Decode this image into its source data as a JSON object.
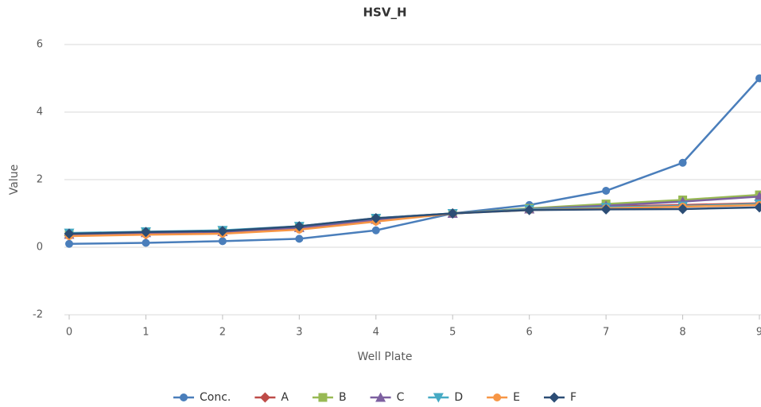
{
  "chart_data": {
    "type": "line",
    "title": "HSV_H",
    "x_label": "Well Plate",
    "y_label": "Value",
    "x": [
      0,
      1,
      2,
      3,
      4,
      5,
      6,
      7,
      8,
      9
    ],
    "xlim": [
      0,
      9
    ],
    "xticks": [
      0,
      1,
      2,
      3,
      4,
      5,
      6,
      7,
      8,
      9
    ],
    "ylim": [
      -2,
      6
    ],
    "yticks": [
      -2,
      0,
      2,
      4,
      6
    ],
    "grid": true,
    "legend": "bottom",
    "series": [
      {
        "name": "Conc.",
        "color": "#4a7ebb",
        "marker": "circle",
        "values": [
          0.1,
          0.13,
          0.18,
          0.25,
          0.5,
          1.0,
          1.25,
          1.67,
          2.5,
          5.0
        ]
      },
      {
        "name": "A",
        "color": "#be4b48",
        "marker": "diamond",
        "values": [
          0.35,
          0.38,
          0.42,
          0.55,
          0.78,
          1.0,
          1.12,
          1.2,
          1.25,
          1.3
        ]
      },
      {
        "name": "B",
        "color": "#98b954",
        "marker": "square",
        "values": [
          0.4,
          0.45,
          0.48,
          0.6,
          0.85,
          1.0,
          1.15,
          1.28,
          1.4,
          1.55
        ]
      },
      {
        "name": "C",
        "color": "#7d60a0",
        "marker": "triangle-up",
        "values": [
          0.38,
          0.43,
          0.46,
          0.58,
          0.82,
          1.0,
          1.13,
          1.23,
          1.35,
          1.5
        ]
      },
      {
        "name": "D",
        "color": "#46aac4",
        "marker": "triangle-down",
        "values": [
          0.42,
          0.46,
          0.5,
          0.62,
          0.86,
          1.0,
          1.12,
          1.18,
          1.22,
          1.28
        ]
      },
      {
        "name": "E",
        "color": "#f79646",
        "marker": "circle",
        "values": [
          0.33,
          0.37,
          0.4,
          0.52,
          0.76,
          1.0,
          1.1,
          1.15,
          1.2,
          1.25
        ]
      },
      {
        "name": "F",
        "color": "#2c4d75",
        "marker": "diamond",
        "values": [
          0.4,
          0.45,
          0.48,
          0.62,
          0.86,
          1.0,
          1.1,
          1.12,
          1.13,
          1.18
        ]
      }
    ]
  }
}
